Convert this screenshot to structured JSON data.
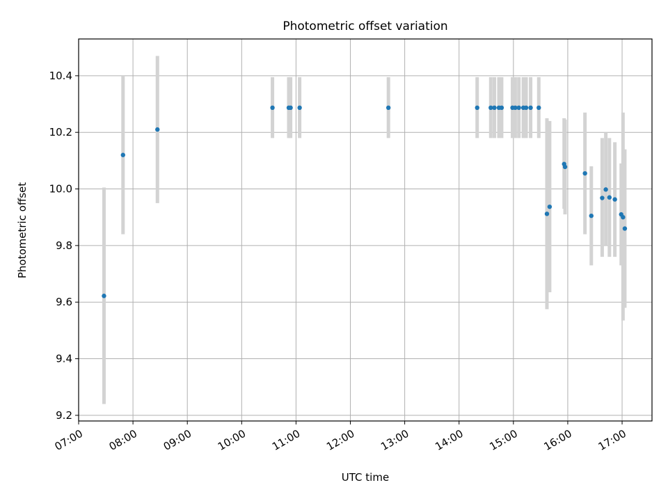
{
  "chart_data": {
    "type": "scatter",
    "title": "Photometric offset variation",
    "xlabel": "UTC time",
    "ylabel": "Photometric offset",
    "xlim": [
      "07:00",
      "17:33"
    ],
    "ylim": [
      9.18,
      10.53
    ],
    "x_ticks": [
      "07:00",
      "08:00",
      "09:00",
      "10:00",
      "11:00",
      "12:00",
      "13:00",
      "14:00",
      "15:00",
      "16:00",
      "17:00"
    ],
    "y_ticks": [
      9.2,
      9.4,
      9.6,
      9.8,
      10.0,
      10.2,
      10.4
    ],
    "grid": true,
    "colors": {
      "points": "#1f77b4",
      "error_bars": "#d3d3d3",
      "grid": "#b0b0b0"
    },
    "series": [
      {
        "points": [
          {
            "x": "07:28",
            "y": 9.622,
            "err_low": 9.24,
            "err_high": 10.005
          },
          {
            "x": "07:49",
            "y": 10.12,
            "err_low": 9.84,
            "err_high": 10.4
          },
          {
            "x": "08:27",
            "y": 10.21,
            "err_low": 9.95,
            "err_high": 10.47
          },
          {
            "x": "10:34",
            "y": 10.287,
            "err_low": 10.18,
            "err_high": 10.395
          },
          {
            "x": "10:52",
            "y": 10.287,
            "err_low": 10.18,
            "err_high": 10.395
          },
          {
            "x": "10:54",
            "y": 10.287,
            "err_low": 10.18,
            "err_high": 10.395
          },
          {
            "x": "11:04",
            "y": 10.287,
            "err_low": 10.18,
            "err_high": 10.395
          },
          {
            "x": "12:42",
            "y": 10.287,
            "err_low": 10.18,
            "err_high": 10.395
          },
          {
            "x": "14:20",
            "y": 10.287,
            "err_low": 10.18,
            "err_high": 10.395
          },
          {
            "x": "14:35",
            "y": 10.287,
            "err_low": 10.18,
            "err_high": 10.395
          },
          {
            "x": "14:39",
            "y": 10.287,
            "err_low": 10.18,
            "err_high": 10.395
          },
          {
            "x": "14:44",
            "y": 10.287,
            "err_low": 10.18,
            "err_high": 10.395
          },
          {
            "x": "14:47",
            "y": 10.287,
            "err_low": 10.18,
            "err_high": 10.395
          },
          {
            "x": "14:59",
            "y": 10.287,
            "err_low": 10.18,
            "err_high": 10.395
          },
          {
            "x": "15:02",
            "y": 10.287,
            "err_low": 10.18,
            "err_high": 10.395
          },
          {
            "x": "15:06",
            "y": 10.287,
            "err_low": 10.18,
            "err_high": 10.395
          },
          {
            "x": "15:11",
            "y": 10.287,
            "err_low": 10.18,
            "err_high": 10.395
          },
          {
            "x": "15:14",
            "y": 10.287,
            "err_low": 10.18,
            "err_high": 10.395
          },
          {
            "x": "15:19",
            "y": 10.287,
            "err_low": 10.18,
            "err_high": 10.395
          },
          {
            "x": "15:28",
            "y": 10.287,
            "err_low": 10.18,
            "err_high": 10.395
          },
          {
            "x": "15:37",
            "y": 9.912,
            "err_low": 9.575,
            "err_high": 10.25
          },
          {
            "x": "15:40",
            "y": 9.937,
            "err_low": 9.635,
            "err_high": 10.24
          },
          {
            "x": "15:56",
            "y": 10.088,
            "err_low": 9.93,
            "err_high": 10.25
          },
          {
            "x": "15:57",
            "y": 10.078,
            "err_low": 9.91,
            "err_high": 10.245
          },
          {
            "x": "16:19",
            "y": 10.055,
            "err_low": 9.84,
            "err_high": 10.27
          },
          {
            "x": "16:26",
            "y": 9.905,
            "err_low": 9.73,
            "err_high": 10.08
          },
          {
            "x": "16:38",
            "y": 9.968,
            "err_low": 9.76,
            "err_high": 10.18
          },
          {
            "x": "16:42",
            "y": 9.998,
            "err_low": 9.8,
            "err_high": 10.2
          },
          {
            "x": "16:46",
            "y": 9.97,
            "err_low": 9.76,
            "err_high": 10.18
          },
          {
            "x": "16:52",
            "y": 9.963,
            "err_low": 9.76,
            "err_high": 10.165
          },
          {
            "x": "16:59",
            "y": 9.91,
            "err_low": 9.73,
            "err_high": 10.09
          },
          {
            "x": "17:01",
            "y": 9.9,
            "err_low": 9.535,
            "err_high": 10.27
          },
          {
            "x": "17:03",
            "y": 9.86,
            "err_low": 9.58,
            "err_high": 10.14
          }
        ]
      }
    ]
  }
}
